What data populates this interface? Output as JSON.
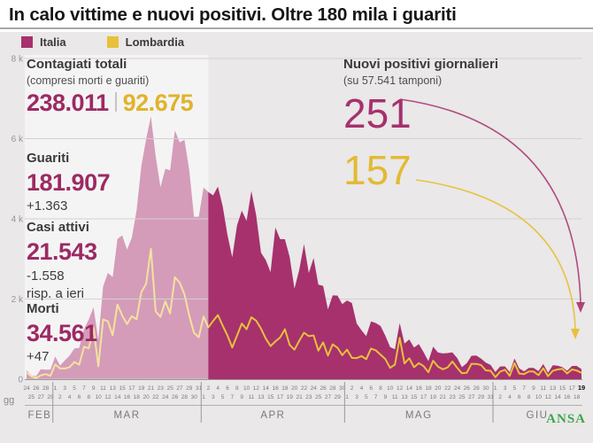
{
  "title": "In calo vittime e nuovi positivi. Oltre 180 mila i guariti",
  "legend": [
    {
      "name": "Italia",
      "color": "#a6316d"
    },
    {
      "name": "Lombardia",
      "color": "#e7c13a"
    }
  ],
  "colors": {
    "italia": "#a6316d",
    "italia_text": "#9c2a63",
    "lombardia": "#e7c13a",
    "lombardia_text": "#e0b32c",
    "background": "#eae8e8",
    "grid": "#d4d0d0",
    "axis": "#9a9a9a",
    "tick_text": "#7a7a7a",
    "ansa_green": "#3ca74b"
  },
  "stats": {
    "contagiati": {
      "label": "Contagiati totali",
      "sublabel": "(compresi morti e guariti)",
      "value_italia": "238.011",
      "value_lombardia": "92.675"
    },
    "guariti": {
      "label": "Guariti",
      "value": "181.907",
      "delta": "+1.363"
    },
    "casi_attivi": {
      "label": "Casi attivi",
      "value": "21.543",
      "delta": "-1.558",
      "delta_note": "risp. a ieri"
    },
    "morti": {
      "label": "Morti",
      "value": "34.561",
      "delta": "+47"
    }
  },
  "right_panel": {
    "label": "Nuovi positivi giornalieri",
    "sublabel": "(su 57.541 tamponi)",
    "value_italia": "251",
    "value_lombardia": "157"
  },
  "axis": {
    "gg_label": "gg",
    "y_ticks": [
      {
        "value": 8000,
        "label": "8 k"
      },
      {
        "value": 6000,
        "label": "6 k"
      },
      {
        "value": 4000,
        "label": "4 k"
      },
      {
        "value": 2000,
        "label": "2 k"
      },
      {
        "value": 0,
        "label": "0"
      }
    ]
  },
  "watermark": "ANSA",
  "chart_data": {
    "type": "area",
    "title": "Nuovi positivi giornalieri, Italia e Lombardia, 24 FEB - 19 GIU",
    "grid": true,
    "ylim": [
      0,
      8000
    ],
    "overlay_end_index": 38,
    "months": [
      {
        "label": "FEB",
        "start_index": 0,
        "first_day": 24,
        "n_days": 6,
        "ticks_top": [
          24,
          26,
          28
        ],
        "ticks_bottom": [
          25,
          27,
          29
        ]
      },
      {
        "label": "MAR",
        "start_index": 6,
        "first_day": 1,
        "n_days": 31,
        "ticks_top": [
          1,
          3,
          5,
          7,
          9,
          11,
          13,
          15,
          17,
          19,
          21,
          23,
          25,
          27,
          29,
          31
        ],
        "ticks_bottom": [
          2,
          4,
          6,
          8,
          10,
          12,
          14,
          16,
          18,
          20,
          22,
          24,
          26,
          28,
          30
        ]
      },
      {
        "label": "APR",
        "start_index": 37,
        "first_day": 1,
        "n_days": 30,
        "ticks_top": [
          2,
          4,
          6,
          8,
          10,
          12,
          14,
          16,
          18,
          20,
          22,
          24,
          26,
          28,
          30
        ],
        "ticks_bottom": [
          1,
          3,
          5,
          7,
          9,
          11,
          13,
          15,
          17,
          19,
          21,
          23,
          25,
          27,
          29
        ]
      },
      {
        "label": "MAG",
        "start_index": 67,
        "first_day": 1,
        "n_days": 31,
        "ticks_top": [
          2,
          4,
          6,
          8,
          10,
          12,
          14,
          16,
          18,
          20,
          22,
          24,
          26,
          28,
          30
        ],
        "ticks_bottom": [
          1,
          3,
          5,
          7,
          9,
          11,
          13,
          15,
          17,
          19,
          21,
          23,
          25,
          27,
          29,
          31
        ]
      },
      {
        "label": "GIU",
        "start_index": 98,
        "first_day": 1,
        "n_days": 19,
        "ticks_top": [
          1,
          3,
          5,
          7,
          9,
          11,
          13,
          15,
          17,
          19
        ],
        "ticks_bottom": [
          2,
          4,
          6,
          8,
          10,
          12,
          14,
          16,
          18
        ],
        "bold_last_top": true
      }
    ],
    "series": [
      {
        "name": "Italia",
        "color": "#a6316d",
        "style": "area",
        "values": [
          221,
          93,
          78,
          250,
          238,
          240,
          566,
          342,
          466,
          587,
          769,
          778,
          1247,
          1492,
          1797,
          977,
          2313,
          2651,
          2547,
          3497,
          3590,
          3233,
          3526,
          4207,
          5322,
          5986,
          6557,
          5560,
          4789,
          5249,
          5210,
          6203,
          5909,
          5974,
          5217,
          4050,
          4053,
          4782,
          4668,
          4585,
          4805,
          4316,
          3599,
          3039,
          3836,
          4204,
          3951,
          4694,
          4092,
          3153,
          2972,
          2667,
          3786,
          3493,
          3491,
          3047,
          2256,
          2729,
          3370,
          2646,
          3021,
          2357,
          2324,
          1739,
          2091,
          2086,
          1872,
          1965,
          1900,
          1389,
          1221,
          1075,
          1444,
          1401,
          1327,
          1083,
          802,
          744,
          1402,
          888,
          992,
          789,
          875,
          675,
          451,
          813,
          665,
          642,
          652,
          669,
          531,
          300,
          397,
          584,
          593,
          516,
          416,
          355,
          178,
          318,
          321,
          177,
          518,
          270,
          197,
          280,
          283,
          202,
          379,
          163,
          346,
          338,
          301,
          210,
          329,
          331,
          251
        ]
      },
      {
        "name": "Lombardia",
        "color": "#e7c13a",
        "style": "line",
        "values": [
          166,
          72,
          33,
          98,
          128,
          84,
          369,
          270,
          266,
          300,
          431,
          361,
          808,
          769,
          1280,
          322,
          1489,
          1445,
          1095,
          1865,
          1587,
          1377,
          1571,
          1493,
          2171,
          2380,
          3251,
          1691,
          1555,
          1942,
          1643,
          2543,
          2409,
          2117,
          1592,
          1154,
          1047,
          1565,
          1292,
          1455,
          1598,
          1337,
          1089,
          791,
          1089,
          1388,
          1246,
          1544,
          1460,
          1262,
          1012,
          827,
          941,
          1041,
          1246,
          855,
          735,
          960,
          1161,
          1073,
          1091,
          713,
          920,
          590,
          869,
          786,
          598,
          737,
          533,
          526,
          577,
          500,
          764,
          720,
          609,
          502,
          282,
          364,
          1033,
          394,
          522,
          299,
          399,
          326,
          175,
          462,
          316,
          246,
          293,
          441,
          285,
          148,
          159,
          384,
          382,
          354,
          221,
          210,
          50,
          187,
          237,
          84,
          402,
          142,
          125,
          194,
          192,
          99,
          272,
          76,
          210,
          244,
          259,
          143,
          242,
          216,
          157
        ]
      }
    ]
  }
}
